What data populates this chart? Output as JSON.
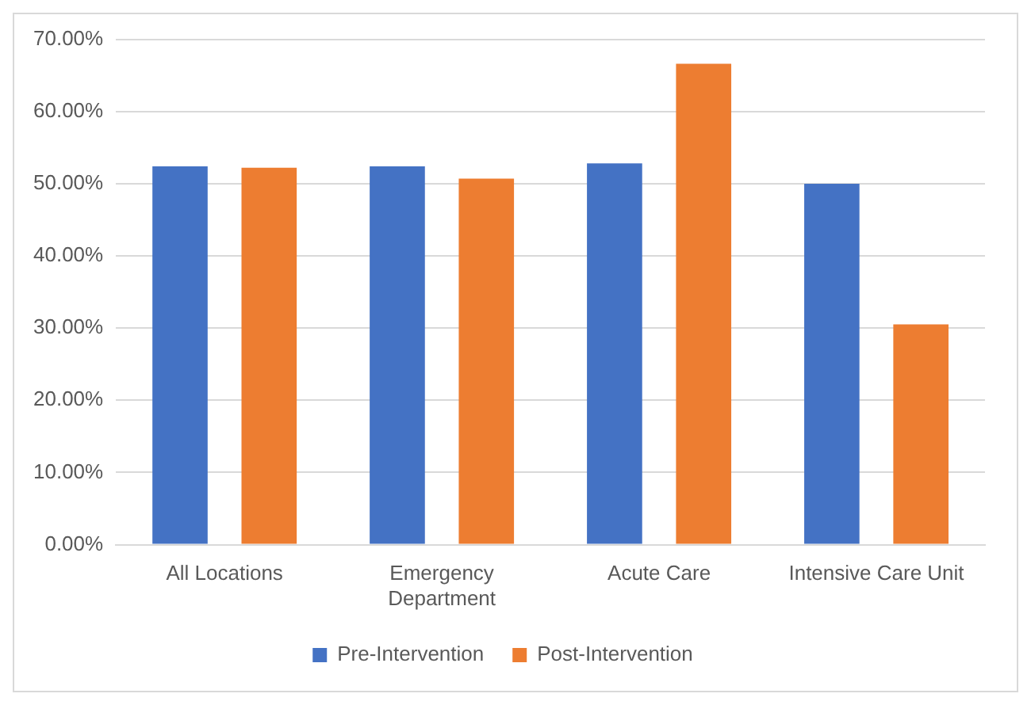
{
  "chart_data": {
    "type": "bar",
    "categories": [
      "All Locations",
      "Emergency Department",
      "Acute Care",
      "Intensive Care Unit"
    ],
    "series": [
      {
        "name": "Pre-Intervention",
        "color": "#4472c4",
        "values": [
          52.4,
          52.4,
          52.8,
          50.0
        ]
      },
      {
        "name": "Post-Intervention",
        "color": "#ed7d31",
        "values": [
          52.2,
          50.7,
          66.6,
          30.5
        ]
      }
    ],
    "ylim": [
      0,
      70
    ],
    "yticks": [
      {
        "value": 0,
        "label": "0.00%"
      },
      {
        "value": 10,
        "label": "10.00%"
      },
      {
        "value": 20,
        "label": "20.00%"
      },
      {
        "value": 30,
        "label": "30.00%"
      },
      {
        "value": 40,
        "label": "40.00%"
      },
      {
        "value": 50,
        "label": "50.00%"
      },
      {
        "value": 60,
        "label": "60.00%"
      },
      {
        "value": 70,
        "label": "70.00%"
      }
    ],
    "grid": "y",
    "legend": "bottom"
  }
}
